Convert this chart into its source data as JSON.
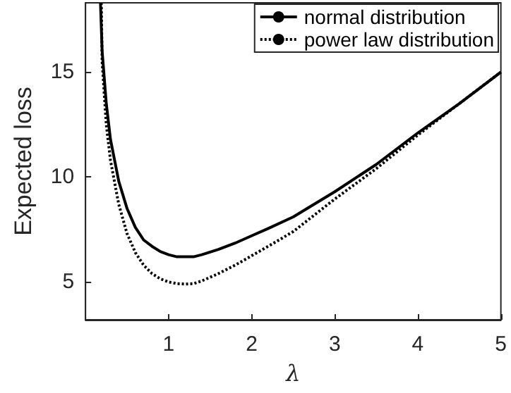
{
  "chart_data": {
    "type": "line",
    "xlabel": "λ",
    "ylabel": "Expected loss",
    "xlim": [
      0,
      5
    ],
    "ylim": [
      3.2,
      18.3
    ],
    "xticks": [
      1,
      2,
      3,
      4,
      5
    ],
    "yticks": [
      5,
      10,
      15
    ],
    "grid": false,
    "legend": "top right",
    "marker": "none",
    "series": [
      {
        "name": "normal distribution",
        "color": "#000000",
        "line_style": "solid",
        "x": [
          0.18,
          0.2,
          0.25,
          0.3,
          0.4,
          0.5,
          0.6,
          0.7,
          0.8,
          0.9,
          1.0,
          1.1,
          1.2,
          1.3,
          1.4,
          1.6,
          1.8,
          2.0,
          2.2,
          2.5,
          3.0,
          3.5,
          4.0,
          4.5,
          5.0
        ],
        "values": [
          18.3,
          16,
          13.5,
          11.8,
          9.8,
          8.5,
          7.6,
          7.0,
          6.7,
          6.45,
          6.3,
          6.2,
          6.2,
          6.2,
          6.3,
          6.55,
          6.85,
          7.2,
          7.55,
          8.1,
          9.3,
          10.6,
          12.1,
          13.5,
          15.0
        ]
      },
      {
        "name": "power law distribution",
        "color": "#000000",
        "line_style": "dotted",
        "x": [
          0.19,
          0.2,
          0.25,
          0.3,
          0.4,
          0.5,
          0.6,
          0.7,
          0.8,
          0.9,
          1.0,
          1.1,
          1.2,
          1.3,
          1.4,
          1.6,
          1.8,
          2.0,
          2.2,
          2.5,
          3.0,
          3.5,
          4.0,
          4.5,
          5.0
        ],
        "values": [
          18.3,
          15.5,
          12.5,
          10.8,
          8.7,
          7.3,
          6.4,
          5.8,
          5.4,
          5.15,
          5.0,
          4.92,
          4.9,
          4.92,
          5.05,
          5.4,
          5.8,
          6.25,
          6.7,
          7.4,
          8.95,
          10.4,
          12.0,
          13.5,
          15.0
        ]
      }
    ]
  }
}
